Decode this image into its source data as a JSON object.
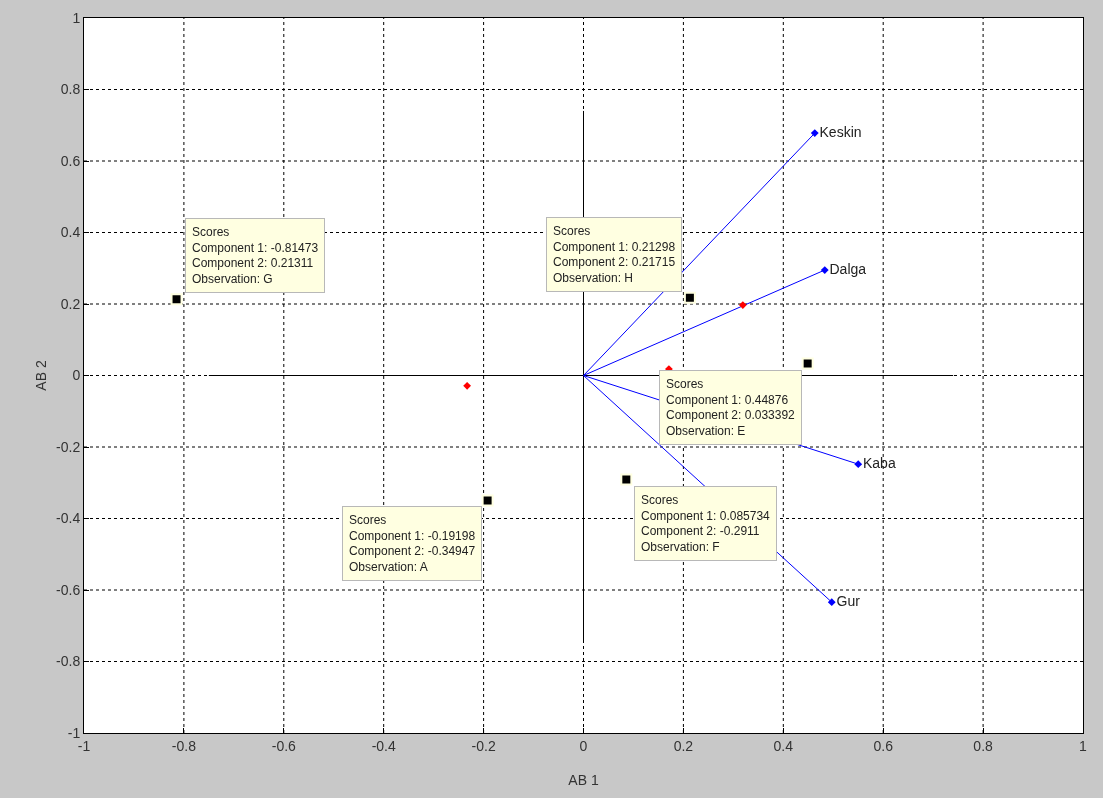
{
  "chart_data": {
    "type": "scatter",
    "xlabel": "AB 1",
    "ylabel": "AB 2",
    "xlim": [
      -1,
      1
    ],
    "ylim": [
      -1,
      1
    ],
    "xticks": [
      -1,
      -0.8,
      -0.6,
      -0.4,
      -0.2,
      0,
      0.2,
      0.4,
      0.6,
      0.8,
      1
    ],
    "yticks": [
      -1,
      -0.8,
      -0.6,
      -0.4,
      -0.2,
      0,
      0.2,
      0.4,
      0.6,
      0.8,
      1
    ],
    "grid": true,
    "legend": false,
    "series": [
      {
        "type": "line",
        "color": "#000000",
        "x": [
          -0.75,
          0.74
        ],
        "values": [
          0,
          0
        ]
      },
      {
        "type": "line",
        "color": "#000000",
        "x": [
          0,
          0
        ],
        "values": [
          -0.74,
          0.74
        ]
      },
      {
        "type": "line",
        "name": "Keskin",
        "color": "#0000ff",
        "marker": "diamond",
        "x": [
          0,
          0.463
        ],
        "values": [
          0,
          0.678
        ]
      },
      {
        "type": "line",
        "name": "Dalga",
        "color": "#0000ff",
        "marker": "diamond",
        "x": [
          0,
          0.483
        ],
        "values": [
          0,
          0.295
        ]
      },
      {
        "type": "line",
        "name": "Kaba",
        "color": "#0000ff",
        "marker": "diamond",
        "x": [
          0,
          0.55
        ],
        "values": [
          0,
          -0.248
        ]
      },
      {
        "type": "line",
        "name": "Gur",
        "color": "#0000ff",
        "marker": "diamond",
        "x": [
          0,
          0.497
        ],
        "values": [
          0,
          -0.634
        ]
      },
      {
        "color": "#ff0000",
        "marker": "diamond",
        "x": [
          -0.233,
          0.319,
          0.171
        ],
        "values": [
          -0.029,
          0.197,
          0.018
        ]
      },
      {
        "color": "#000000",
        "marker": "square",
        "x": [
          -0.81473,
          0.21298,
          0.44876,
          0.085734,
          -0.19198
        ],
        "values": [
          0.21311,
          0.21715,
          0.033392,
          -0.2911,
          -0.34947
        ]
      }
    ],
    "annotations": [
      {
        "text": "Scores\nComponent 1: -0.81473\nComponent 2: 0.21311\nObservation: G",
        "x": -0.81473,
        "y": 0.21311
      },
      {
        "text": "Scores\nComponent 1: 0.21298\nComponent 2: 0.21715\nObservation: H",
        "x": 0.21298,
        "y": 0.21715
      },
      {
        "text": "Scores\nComponent 1: 0.44876\nComponent 2: 0.033392\nObservation: E",
        "x": 0.44876,
        "y": 0.033392
      },
      {
        "text": "Scores\nComponent 1: 0.085734\nComponent 2: -0.2911\nObservation: F",
        "x": 0.085734,
        "y": -0.2911
      },
      {
        "text": "Scores\nComponent 1: -0.19198\nComponent 2: -0.34947\nObservation: A",
        "x": -0.19198,
        "y": -0.34947
      }
    ]
  }
}
